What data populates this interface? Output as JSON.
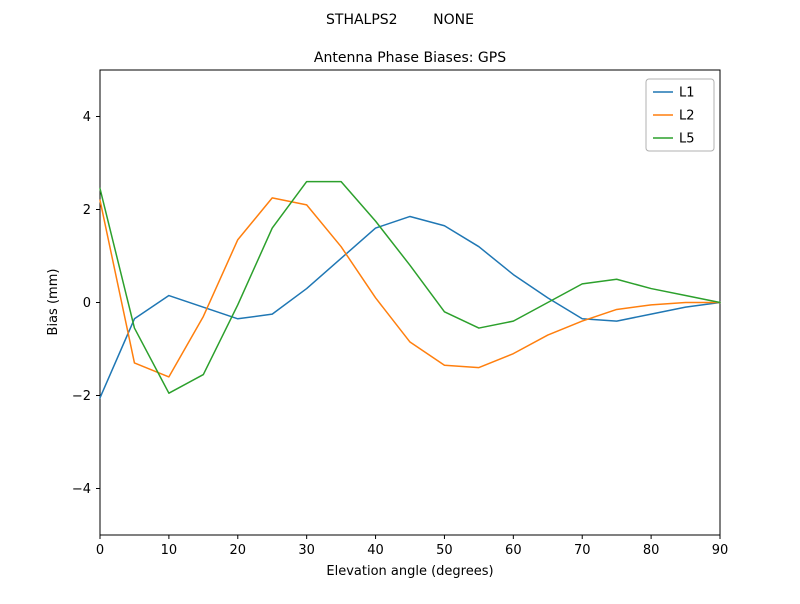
{
  "chart_data": {
    "type": "line",
    "suptitle": "STHALPS2        NONE",
    "title": "Antenna Phase Biases: GPS",
    "xlabel": "Elevation angle (degrees)",
    "ylabel": "Bias (mm)",
    "xlim": [
      0,
      90
    ],
    "ylim": [
      -5,
      5
    ],
    "xticks": [
      0,
      10,
      20,
      30,
      40,
      50,
      60,
      70,
      80,
      90
    ],
    "yticks": [
      -4,
      -2,
      0,
      2,
      4
    ],
    "grid": false,
    "legend_position": "upper right",
    "x": [
      0,
      5,
      10,
      15,
      20,
      25,
      30,
      35,
      40,
      45,
      50,
      55,
      60,
      65,
      70,
      75,
      80,
      85,
      90
    ],
    "series": [
      {
        "name": "L1",
        "color": "#1f77b4",
        "values": [
          -2.05,
          -0.35,
          0.15,
          -0.1,
          -0.35,
          -0.25,
          0.3,
          0.95,
          1.6,
          1.85,
          1.65,
          1.2,
          0.6,
          0.1,
          -0.35,
          -0.4,
          -0.25,
          -0.1,
          0.0
        ]
      },
      {
        "name": "L2",
        "color": "#ff7f0e",
        "values": [
          2.2,
          -1.3,
          -1.6,
          -0.3,
          1.35,
          2.25,
          2.1,
          1.2,
          0.1,
          -0.85,
          -1.35,
          -1.4,
          -1.1,
          -0.7,
          -0.4,
          -0.15,
          -0.05,
          0.0,
          0.0
        ]
      },
      {
        "name": "L5",
        "color": "#2ca02c",
        "values": [
          2.45,
          -0.55,
          -1.95,
          -1.55,
          -0.05,
          1.6,
          2.6,
          2.6,
          1.75,
          0.8,
          -0.2,
          -0.55,
          -0.4,
          0.0,
          0.4,
          0.5,
          0.3,
          0.15,
          0.0
        ]
      }
    ]
  }
}
